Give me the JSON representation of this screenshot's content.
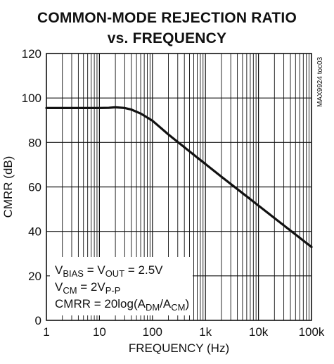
{
  "title_line1": "COMMON-MODE REJECTION RATIO",
  "title_line2": "vs. FREQUENCY",
  "figure_code": "MAX9924 toc03",
  "chart_data": {
    "type": "line",
    "xlabel": "FREQUENCY (Hz)",
    "ylabel": "CMRR (dB)",
    "xscale": "log",
    "xlim": [
      1,
      100000
    ],
    "ylim": [
      0,
      120
    ],
    "grid": true,
    "x_ticks": [
      1,
      10,
      100,
      1000,
      10000,
      100000
    ],
    "x_tick_labels": [
      "1",
      "10",
      "100",
      "1k",
      "10k",
      "100k"
    ],
    "y_ticks": [
      0,
      20,
      40,
      60,
      80,
      100,
      120
    ],
    "y_tick_labels": [
      "0",
      "20",
      "40",
      "60",
      "80",
      "100",
      "120"
    ],
    "series": [
      {
        "x": [
          1,
          5,
          10,
          15,
          20,
          30,
          40,
          60,
          100,
          200,
          500,
          1000,
          2000,
          5000,
          10000,
          20000,
          50000,
          100000
        ],
        "y": [
          95.5,
          95.5,
          95.5,
          95.6,
          95.8,
          95.5,
          94.8,
          93.0,
          89.8,
          83.6,
          76.0,
          70.3,
          64.6,
          57.2,
          51.6,
          46.0,
          38.6,
          33.0
        ]
      }
    ],
    "annotations": [
      {
        "parts": [
          {
            "t": "V"
          },
          {
            "t": "BIAS",
            "sub": true
          },
          {
            "t": " = V"
          },
          {
            "t": "OUT",
            "sub": true
          },
          {
            "t": " = 2.5V"
          }
        ]
      },
      {
        "parts": [
          {
            "t": "V"
          },
          {
            "t": "CM",
            "sub": true
          },
          {
            "t": " = 2V"
          },
          {
            "t": "P-P",
            "sub": true
          }
        ]
      },
      {
        "parts": [
          {
            "t": "CMRR = 20log(A"
          },
          {
            "t": "DM",
            "sub": true
          },
          {
            "t": "/A"
          },
          {
            "t": "CM",
            "sub": true
          },
          {
            "t": ")"
          }
        ]
      }
    ],
    "line_color": "#111111",
    "grid_color": "#111111"
  }
}
